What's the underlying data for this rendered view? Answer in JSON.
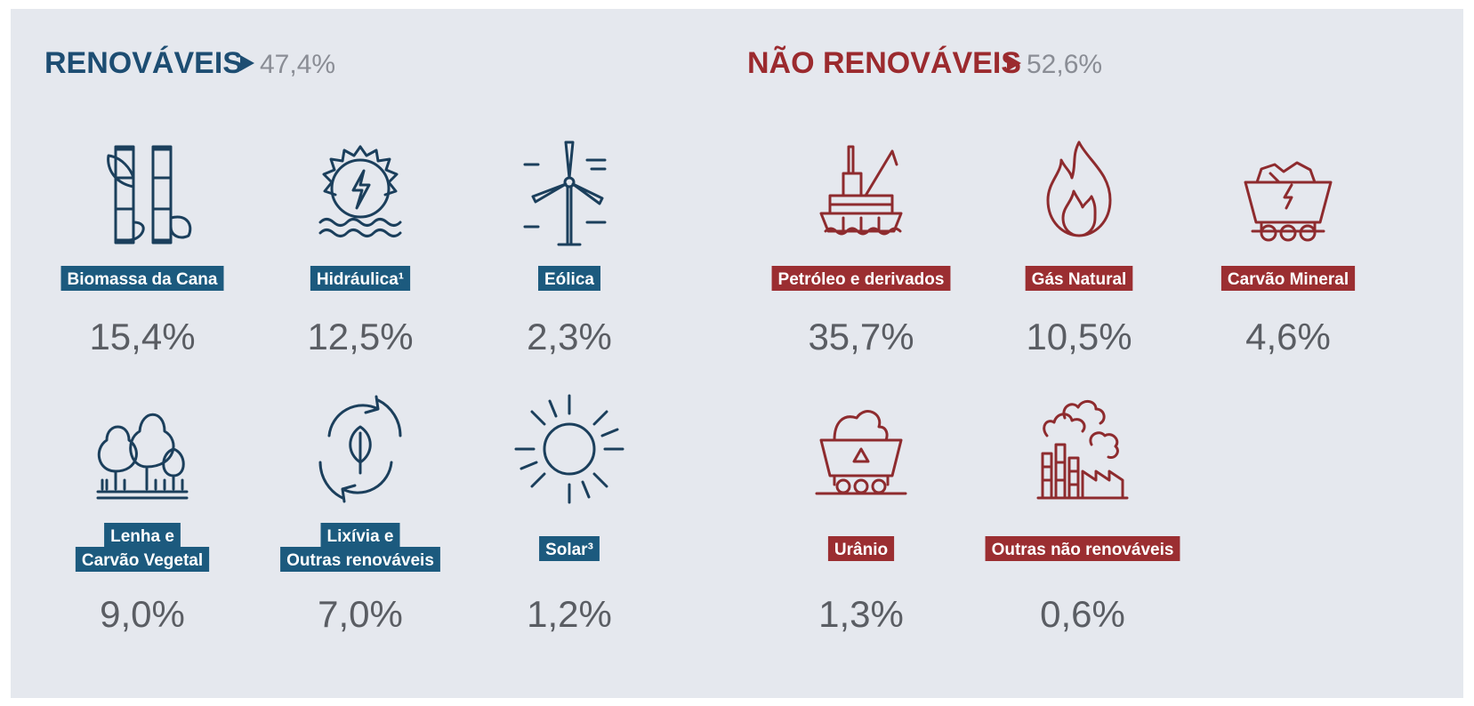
{
  "renewables": {
    "title": "RENOVÁVEIS",
    "share": "47,4%",
    "items": [
      {
        "label": [
          "Biomassa da Cana"
        ],
        "value": "15,4%"
      },
      {
        "label": [
          "Hidráulica¹"
        ],
        "value": "12,5%"
      },
      {
        "label": [
          "Eólica"
        ],
        "value": "2,3%"
      },
      {
        "label": [
          "Lenha e",
          "Carvão Vegetal"
        ],
        "value": "9,0%"
      },
      {
        "label": [
          "Lixívia e",
          "Outras renováveis"
        ],
        "value": "7,0%"
      },
      {
        "label": [
          "Solar³"
        ],
        "value": "1,2%"
      }
    ]
  },
  "non_renewables": {
    "title": "NÃO RENOVÁVEIS",
    "share": "52,6%",
    "items": [
      {
        "label": [
          "Petróleo e derivados"
        ],
        "value": "35,7%"
      },
      {
        "label": [
          "Gás Natural"
        ],
        "value": "10,5%"
      },
      {
        "label": [
          "Carvão Mineral"
        ],
        "value": "4,6%"
      },
      {
        "label": [
          "Urânio"
        ],
        "value": "1,3%"
      },
      {
        "label": [
          "Outras não renováveis"
        ],
        "value": "0,6%"
      }
    ]
  }
}
